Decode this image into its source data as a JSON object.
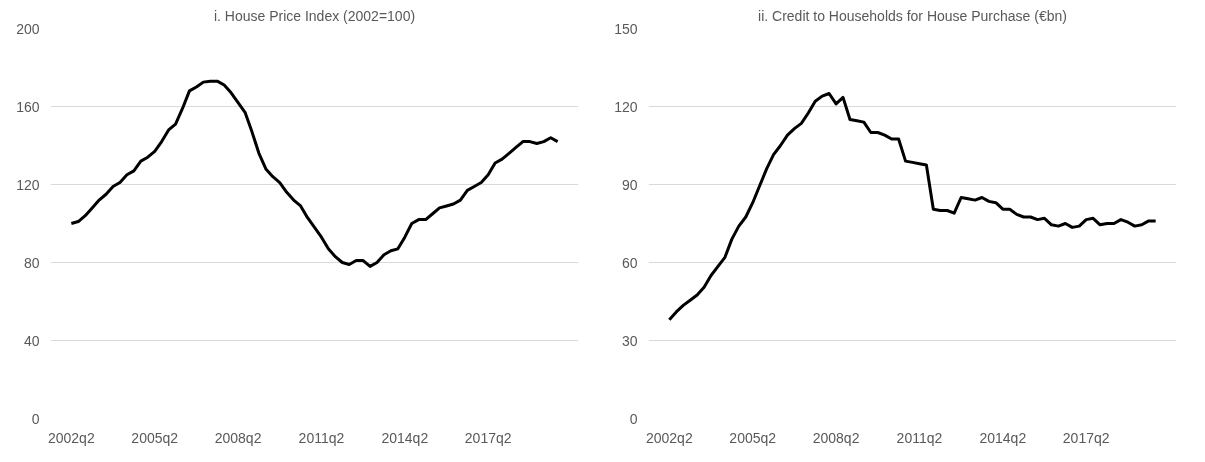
{
  "chart_data": [
    {
      "type": "line",
      "title": "i. House Price Index (2002=100)",
      "grid": "y",
      "ylim": [
        0,
        200
      ],
      "yticks": [
        0,
        40,
        80,
        120,
        160,
        200
      ],
      "categories": [
        "2002q2",
        null,
        null,
        null,
        null,
        null,
        null,
        null,
        null,
        null,
        null,
        null,
        "2005q2",
        null,
        null,
        null,
        null,
        null,
        null,
        null,
        null,
        null,
        null,
        null,
        "2008q2",
        null,
        null,
        null,
        null,
        null,
        null,
        null,
        null,
        null,
        null,
        null,
        "2011q2",
        null,
        null,
        null,
        null,
        null,
        null,
        null,
        null,
        null,
        null,
        null,
        "2014q2",
        null,
        null,
        null,
        null,
        null,
        null,
        null,
        null,
        null,
        null,
        null,
        "2017q2",
        null,
        null,
        null,
        null,
        null,
        null,
        null,
        null,
        null,
        null
      ],
      "series": [
        {
          "color": "#000000",
          "values": [
            100,
            101,
            104,
            108,
            112,
            115,
            119,
            121,
            125,
            127,
            132,
            134,
            137,
            142,
            148,
            151,
            159,
            168,
            170,
            172.5,
            173,
            173,
            171,
            167,
            162,
            157,
            147,
            136,
            128,
            124,
            121,
            116,
            112,
            109,
            103,
            98,
            93,
            87,
            83,
            80,
            79,
            81,
            81,
            78,
            80,
            84,
            86,
            87,
            93,
            100,
            102,
            102,
            105,
            108,
            109,
            110,
            112,
            117,
            119,
            121,
            125,
            131,
            133,
            136,
            139,
            142,
            142,
            141,
            142,
            144,
            142
          ]
        }
      ]
    },
    {
      "type": "line",
      "title": "ii. Credit to Households for House Purchase (€bn)",
      "grid": "y",
      "ylim": [
        0,
        150
      ],
      "yticks": [
        0,
        30,
        60,
        90,
        120,
        150
      ],
      "categories": [
        "2002q2",
        null,
        null,
        null,
        null,
        null,
        null,
        null,
        null,
        null,
        null,
        null,
        "2005q2",
        null,
        null,
        null,
        null,
        null,
        null,
        null,
        null,
        null,
        null,
        null,
        "2008q2",
        null,
        null,
        null,
        null,
        null,
        null,
        null,
        null,
        null,
        null,
        null,
        "2011q2",
        null,
        null,
        null,
        null,
        null,
        null,
        null,
        null,
        null,
        null,
        null,
        "2014q2",
        null,
        null,
        null,
        null,
        null,
        null,
        null,
        null,
        null,
        null,
        null,
        "2017q2",
        null,
        null,
        null,
        null,
        null,
        null,
        null,
        null,
        null,
        null
      ],
      "series": [
        {
          "color": "#000000",
          "values": [
            38,
            41,
            43.5,
            45.5,
            47.5,
            50.5,
            55,
            58.5,
            62,
            69,
            74,
            77.5,
            83,
            89.5,
            96,
            101.5,
            105,
            109,
            111.5,
            113.5,
            117.5,
            122,
            124,
            125,
            121,
            123.5,
            115,
            114.5,
            114,
            110,
            110,
            109,
            107.5,
            107.5,
            99,
            98.5,
            98,
            97.5,
            80.5,
            80,
            80,
            79,
            85,
            84.5,
            84,
            85,
            83.5,
            83,
            80.5,
            80.5,
            78.5,
            77.5,
            77.5,
            76.5,
            77,
            74.5,
            74,
            75,
            73.5,
            74,
            76.5,
            77,
            74.5,
            75,
            75,
            76.5,
            75.5,
            74,
            74.5,
            76,
            76
          ]
        }
      ]
    }
  ]
}
